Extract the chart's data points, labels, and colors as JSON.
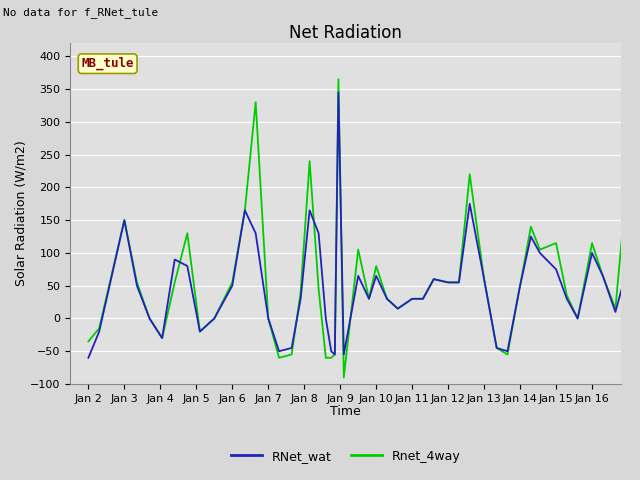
{
  "title": "Net Radiation",
  "xlabel": "Time",
  "ylabel": "Solar Radiation (W/m2)",
  "top_left_text": "No data for f_RNet_tule",
  "annotation_box_text": "MB_tule",
  "ylim": [
    -100,
    420
  ],
  "yticks": [
    -100,
    -50,
    0,
    50,
    100,
    150,
    200,
    250,
    300,
    350,
    400
  ],
  "xtick_labels": [
    "Jan 2",
    "Jan 3",
    "Jan 4",
    "Jan 5",
    "Jan 6",
    "Jan 7",
    "Jan 8",
    "Jan 9",
    "Jan 10",
    "Jan 11",
    "Jan 12",
    "Jan 13",
    "Jan 14",
    "Jan 15",
    "Jan 16"
  ],
  "rnet_wat_x": [
    0.0,
    0.3,
    1.0,
    1.35,
    1.7,
    2.05,
    2.4,
    2.75,
    3.1,
    3.5,
    4.0,
    4.35,
    4.65,
    5.0,
    5.3,
    5.65,
    5.9,
    6.15,
    6.4,
    6.6,
    6.75,
    6.85,
    6.95,
    7.1,
    7.5,
    7.8,
    8.0,
    8.3,
    8.6,
    9.0,
    9.3,
    9.6,
    10.0,
    10.3,
    10.6,
    11.0,
    11.35,
    11.65,
    12.0,
    12.3,
    12.55,
    13.0,
    13.3,
    13.6,
    14.0,
    14.3,
    14.65,
    14.85
  ],
  "rnet_wat_y": [
    -60,
    -20,
    150,
    50,
    0,
    -30,
    90,
    80,
    -20,
    0,
    50,
    165,
    130,
    0,
    -50,
    -45,
    30,
    165,
    130,
    0,
    -50,
    -55,
    345,
    -55,
    65,
    30,
    65,
    30,
    15,
    30,
    30,
    60,
    55,
    55,
    175,
    60,
    -45,
    -50,
    50,
    125,
    100,
    75,
    30,
    0,
    100,
    65,
    10,
    50
  ],
  "rnet_4way_x": [
    0.0,
    0.3,
    1.0,
    1.35,
    1.7,
    2.05,
    2.4,
    2.75,
    3.1,
    3.5,
    4.0,
    4.35,
    4.65,
    5.0,
    5.3,
    5.65,
    5.9,
    6.15,
    6.4,
    6.6,
    6.75,
    6.85,
    6.95,
    7.1,
    7.5,
    7.8,
    8.0,
    8.3,
    8.6,
    9.0,
    9.3,
    9.6,
    10.0,
    10.3,
    10.6,
    11.0,
    11.35,
    11.65,
    12.0,
    12.3,
    12.55,
    13.0,
    13.3,
    13.6,
    14.0,
    14.3,
    14.65,
    14.85
  ],
  "rnet_4way_y": [
    -35,
    -15,
    150,
    55,
    0,
    -30,
    55,
    130,
    -20,
    0,
    55,
    165,
    330,
    0,
    -60,
    -55,
    40,
    240,
    45,
    -60,
    -60,
    -55,
    365,
    -90,
    105,
    30,
    80,
    30,
    15,
    30,
    30,
    60,
    55,
    55,
    220,
    60,
    -45,
    -55,
    50,
    140,
    105,
    115,
    35,
    0,
    115,
    65,
    15,
    135
  ],
  "line_color_wat": "#2222bb",
  "line_color_4way": "#00cc00",
  "bg_color": "#d8d8d8",
  "plot_bg_color": "#e0e0e0",
  "grid_color": "#ffffff",
  "title_fontsize": 12,
  "label_fontsize": 9,
  "tick_fontsize": 8,
  "legend_fontsize": 9
}
